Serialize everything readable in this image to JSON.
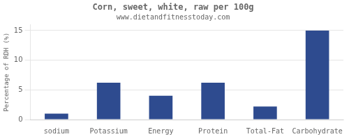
{
  "chart_data": {
    "type": "bar",
    "title": "Corn, sweet, white, raw per 100g",
    "subtitle": "www.dietandfitnesstoday.com",
    "categories": [
      "sodium",
      "Potassium",
      "Energy",
      "Protein",
      "Total-Fat",
      "Carbohydrate"
    ],
    "values": [
      1.0,
      6.2,
      4.0,
      6.2,
      2.2,
      15.0
    ],
    "color": "#2e4b8f",
    "ylabel": "Percentage of RDH (%)",
    "ylim": [
      0,
      16
    ],
    "yticks": [
      0,
      5,
      10,
      15
    ],
    "grid": true
  }
}
